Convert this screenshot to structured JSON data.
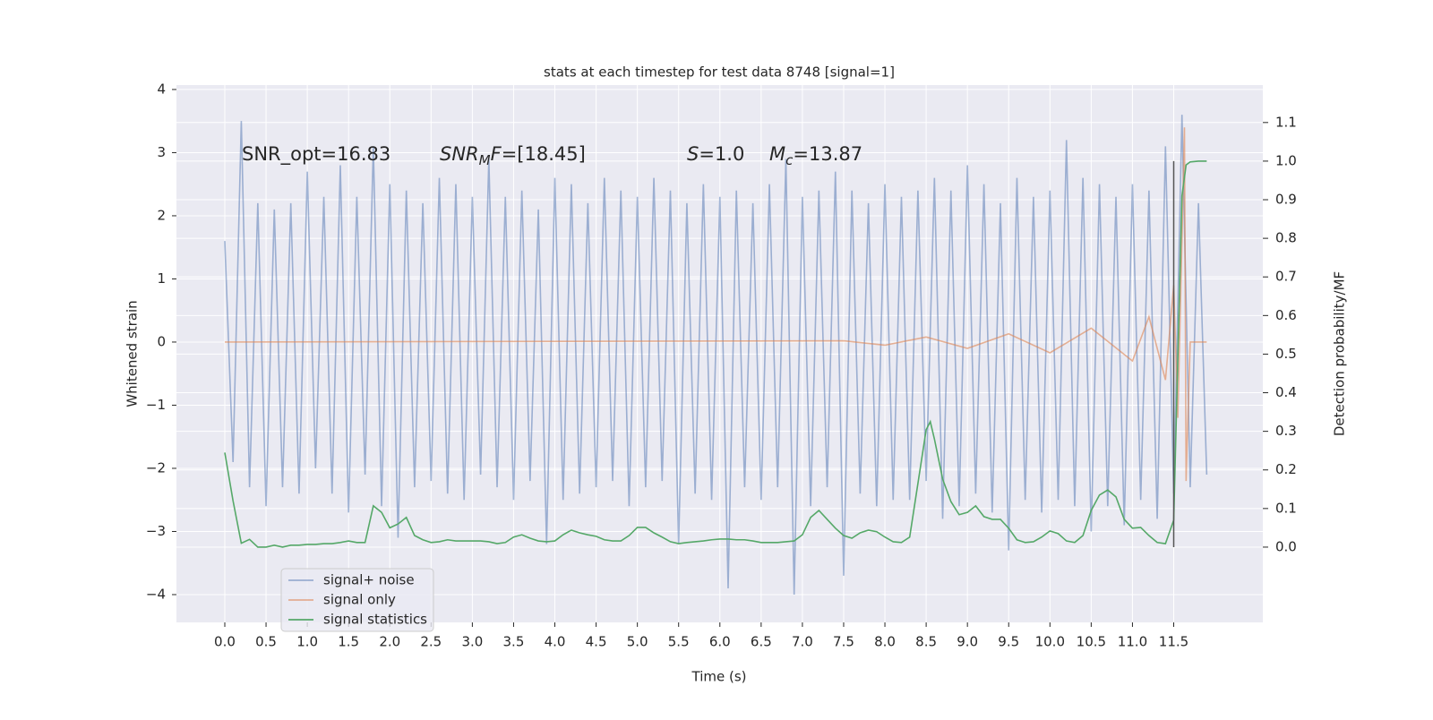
{
  "chart_data": {
    "type": "line",
    "title": "stats at each timestep for test data 8748 [signal=1]",
    "x_label": "Time (s)",
    "y_label": "Whitened strain",
    "y2_label": "Detection probability/MF",
    "xlim": [
      -0.586,
      12.58
    ],
    "ylim": [
      -4.44,
      4.07
    ],
    "y2lim": [
      -0.195,
      1.197
    ],
    "xticks": [
      {
        "value": 0,
        "label": "0.0"
      },
      {
        "value": 0.5,
        "label": "0.5"
      },
      {
        "value": 1,
        "label": "1.0"
      },
      {
        "value": 1.5,
        "label": "1.5"
      },
      {
        "value": 2,
        "label": "2.0"
      },
      {
        "value": 2.5,
        "label": "2.5"
      },
      {
        "value": 3,
        "label": "3.0"
      },
      {
        "value": 3.5,
        "label": "3.5"
      },
      {
        "value": 4,
        "label": "4.0"
      },
      {
        "value": 4.5,
        "label": "4.5"
      },
      {
        "value": 5,
        "label": "5.0"
      },
      {
        "value": 5.5,
        "label": "5.5"
      },
      {
        "value": 6,
        "label": "6.0"
      },
      {
        "value": 6.5,
        "label": "6.5"
      },
      {
        "value": 7,
        "label": "7.0"
      },
      {
        "value": 7.5,
        "label": "7.5"
      },
      {
        "value": 8,
        "label": "8.0"
      },
      {
        "value": 8.5,
        "label": "8.5"
      },
      {
        "value": 9,
        "label": "9.0"
      },
      {
        "value": 9.5,
        "label": "9.5"
      },
      {
        "value": 10,
        "label": "10.0"
      },
      {
        "value": 10.5,
        "label": "10.5"
      },
      {
        "value": 11,
        "label": "11.0"
      },
      {
        "value": 11.5,
        "label": "11.5"
      }
    ],
    "yticks": [
      {
        "value": -4,
        "label": "−4"
      },
      {
        "value": -3,
        "label": "−3"
      },
      {
        "value": -2,
        "label": "−2"
      },
      {
        "value": -1,
        "label": "−1"
      },
      0,
      1,
      2,
      3,
      4
    ],
    "y2ticks": [
      {
        "value": 0,
        "label": "0.0"
      },
      {
        "value": 0.1,
        "label": "0.1"
      },
      {
        "value": 0.2,
        "label": "0.2"
      },
      {
        "value": 0.3,
        "label": "0.3"
      },
      {
        "value": 0.4,
        "label": "0.4"
      },
      {
        "value": 0.5,
        "label": "0.5"
      },
      {
        "value": 0.6,
        "label": "0.6"
      },
      {
        "value": 0.7,
        "label": "0.7"
      },
      {
        "value": 0.8,
        "label": "0.8"
      },
      {
        "value": 0.9,
        "label": "0.9"
      },
      {
        "value": 1,
        "label": "1.0"
      },
      {
        "value": 1.1,
        "label": "1.1"
      }
    ],
    "grid": true,
    "legend": "lower left",
    "annotations": [
      [
        {
          "text": "SNR_opt=16.83"
        }
      ],
      [
        {
          "text": "SNR",
          "italic": true
        },
        {
          "text": "M",
          "italic": true,
          "sub": true
        },
        {
          "text": "F",
          "italic": true
        },
        {
          "text": "=[18.45]"
        }
      ],
      [
        {
          "text": "S",
          "italic": true
        },
        {
          "text": "=1.0"
        }
      ],
      [
        {
          "text": "M",
          "italic": true
        },
        {
          "text": "c",
          "italic": true,
          "sub": true
        },
        {
          "text": "=13.87"
        }
      ]
    ],
    "vline": {
      "x": 11.5,
      "ymin": 0,
      "ymax": 1,
      "axis": "y2",
      "color": "#555555"
    },
    "series": [
      {
        "name": "signal+ noise",
        "color": "#4c72b0",
        "opacity": 0.5,
        "x": [
          0,
          0.1,
          0.2,
          0.3,
          0.4,
          0.5,
          0.6,
          0.7,
          0.8,
          0.9,
          1,
          1.1,
          1.2,
          1.3,
          1.4,
          1.5,
          1.6,
          1.7,
          1.8,
          1.9,
          2,
          2.1,
          2.2,
          2.3,
          2.4,
          2.5,
          2.6,
          2.7,
          2.8,
          2.9,
          3,
          3.1,
          3.2,
          3.3,
          3.4,
          3.5,
          3.6,
          3.7,
          3.8,
          3.9,
          4,
          4.1,
          4.2,
          4.3,
          4.4,
          4.5,
          4.6,
          4.7,
          4.8,
          4.9,
          5,
          5.1,
          5.2,
          5.3,
          5.4,
          5.5,
          5.6,
          5.7,
          5.8,
          5.9,
          6,
          6.1,
          6.2,
          6.3,
          6.4,
          6.5,
          6.6,
          6.7,
          6.8,
          6.9,
          7,
          7.1,
          7.2,
          7.3,
          7.4,
          7.5,
          7.6,
          7.7,
          7.8,
          7.9,
          8,
          8.1,
          8.2,
          8.3,
          8.4,
          8.5,
          8.6,
          8.7,
          8.8,
          8.9,
          9,
          9.1,
          9.2,
          9.3,
          9.4,
          9.5,
          9.6,
          9.7,
          9.8,
          9.9,
          10,
          10.1,
          10.2,
          10.3,
          10.4,
          10.5,
          10.6,
          10.7,
          10.8,
          10.9,
          11,
          11.1,
          11.2,
          11.3,
          11.4,
          11.5,
          11.6,
          11.7,
          11.8,
          11.9
        ],
        "values": [
          1.6,
          -1.9,
          3.5,
          -2.3,
          2.2,
          -2.6,
          2.1,
          -2.3,
          2.2,
          -2.4,
          2.7,
          -2.0,
          2.3,
          -2.4,
          2.8,
          -2.7,
          2.3,
          -2.1,
          3.1,
          -2.6,
          2.5,
          -3.1,
          2.4,
          -2.3,
          2.2,
          -2.2,
          2.6,
          -2.4,
          2.5,
          -2.5,
          2.3,
          -2.1,
          2.9,
          -2.3,
          2.3,
          -2.5,
          2.4,
          -2.2,
          2.1,
          -3.2,
          2.6,
          -2.5,
          2.5,
          -2.4,
          2.2,
          -2.3,
          2.6,
          -2.2,
          2.4,
          -2.6,
          2.3,
          -2.3,
          2.6,
          -2.2,
          2.4,
          -3.2,
          2.2,
          -2.4,
          2.5,
          -2.5,
          2.3,
          -3.9,
          2.4,
          -2.3,
          2.2,
          -2.5,
          2.5,
          -2.3,
          2.9,
          -4.0,
          2.3,
          -2.6,
          2.4,
          -2.3,
          2.7,
          -3.7,
          2.4,
          -2.4,
          2.2,
          -2.6,
          2.5,
          -2.5,
          2.3,
          -2.5,
          2.4,
          -2.2,
          2.6,
          -2.8,
          2.4,
          -2.6,
          2.8,
          -2.4,
          2.5,
          -2.7,
          2.2,
          -3.3,
          2.6,
          -2.5,
          2.3,
          -2.7,
          2.4,
          -2.5,
          3.2,
          -2.6,
          2.6,
          -3.0,
          2.5,
          -2.6,
          2.3,
          -2.9,
          2.5,
          -2.5,
          2.4,
          -2.8,
          3.1,
          -2.4,
          3.6,
          -2.3,
          2.2,
          -2.1
        ]
      },
      {
        "name": "signal only",
        "color": "#dd8452",
        "opacity": 0.6,
        "x": [
          0,
          7.5,
          8,
          8.5,
          9,
          9.5,
          10,
          10.5,
          11,
          11.2,
          11.4,
          11.5,
          11.55,
          11.6,
          11.63,
          11.65,
          11.7,
          11.9
        ],
        "values": [
          0,
          0.02,
          -0.05,
          0.08,
          -0.1,
          0.13,
          -0.17,
          0.22,
          -0.3,
          0.4,
          -0.6,
          0.9,
          -1.2,
          1.6,
          3.4,
          -2.2,
          0,
          0
        ]
      },
      {
        "name": "signal statistics",
        "color": "#55a868",
        "opacity": 1,
        "axis": "y2",
        "x": [
          0,
          0.1,
          0.2,
          0.3,
          0.4,
          0.5,
          0.6,
          0.7,
          0.8,
          0.9,
          1,
          1.1,
          1.2,
          1.3,
          1.4,
          1.5,
          1.6,
          1.7,
          1.8,
          1.9,
          2,
          2.1,
          2.2,
          2.3,
          2.4,
          2.5,
          2.6,
          2.7,
          2.8,
          2.9,
          3,
          3.1,
          3.2,
          3.3,
          3.4,
          3.5,
          3.6,
          3.7,
          3.8,
          3.9,
          4,
          4.1,
          4.2,
          4.3,
          4.4,
          4.5,
          4.6,
          4.7,
          4.8,
          4.9,
          5,
          5.1,
          5.2,
          5.3,
          5.4,
          5.5,
          5.6,
          5.7,
          5.8,
          5.9,
          6,
          6.1,
          6.2,
          6.3,
          6.4,
          6.5,
          6.6,
          6.7,
          6.8,
          6.9,
          7,
          7.1,
          7.2,
          7.3,
          7.4,
          7.5,
          7.6,
          7.7,
          7.8,
          7.9,
          8,
          8.1,
          8.2,
          8.3,
          8.4,
          8.5,
          8.55,
          8.6,
          8.7,
          8.8,
          8.9,
          9,
          9.1,
          9.2,
          9.3,
          9.4,
          9.5,
          9.6,
          9.7,
          9.8,
          9.9,
          10,
          10.1,
          10.2,
          10.3,
          10.4,
          10.5,
          10.6,
          10.7,
          10.8,
          10.9,
          11,
          11.1,
          11.2,
          11.3,
          11.4,
          11.5,
          11.55,
          11.6,
          11.65,
          11.7,
          11.8,
          11.9
        ],
        "values": [
          0.245,
          0.12,
          0.01,
          0.02,
          0.0,
          0.0,
          0.005,
          0.0,
          0.005,
          0.005,
          0.007,
          0.007,
          0.009,
          0.009,
          0.012,
          0.016,
          0.012,
          0.012,
          0.107,
          0.09,
          0.05,
          0.06,
          0.077,
          0.03,
          0.019,
          0.012,
          0.014,
          0.019,
          0.016,
          0.016,
          0.016,
          0.016,
          0.014,
          0.009,
          0.012,
          0.026,
          0.032,
          0.023,
          0.016,
          0.014,
          0.016,
          0.032,
          0.044,
          0.037,
          0.032,
          0.028,
          0.019,
          0.016,
          0.016,
          0.03,
          0.051,
          0.051,
          0.037,
          0.026,
          0.014,
          0.009,
          0.012,
          0.014,
          0.016,
          0.019,
          0.021,
          0.021,
          0.019,
          0.019,
          0.016,
          0.012,
          0.012,
          0.012,
          0.014,
          0.016,
          0.032,
          0.077,
          0.095,
          0.072,
          0.049,
          0.03,
          0.023,
          0.037,
          0.044,
          0.04,
          0.026,
          0.014,
          0.012,
          0.026,
          0.165,
          0.304,
          0.325,
          0.28,
          0.176,
          0.118,
          0.084,
          0.09,
          0.107,
          0.079,
          0.072,
          0.072,
          0.049,
          0.019,
          0.012,
          0.014,
          0.026,
          0.042,
          0.035,
          0.016,
          0.012,
          0.03,
          0.095,
          0.135,
          0.148,
          0.13,
          0.072,
          0.049,
          0.051,
          0.03,
          0.012,
          0.009,
          0.07,
          0.49,
          0.91,
          0.99,
          0.998,
          1.0,
          1.0
        ]
      }
    ]
  }
}
